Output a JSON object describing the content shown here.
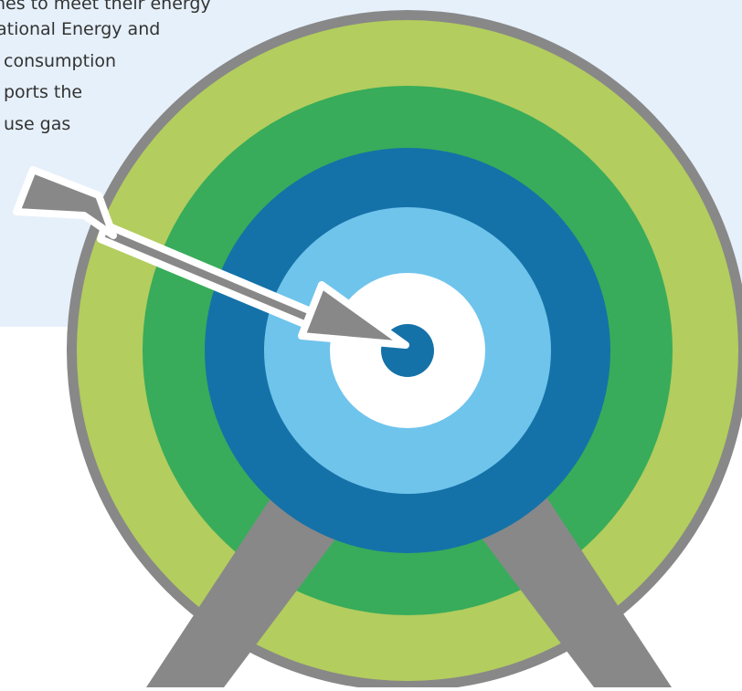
{
  "text_lines": [
    "nes to meet their energy",
    "ational Energy and",
    "consumption",
    "ports the",
    "use gas"
  ]
}
